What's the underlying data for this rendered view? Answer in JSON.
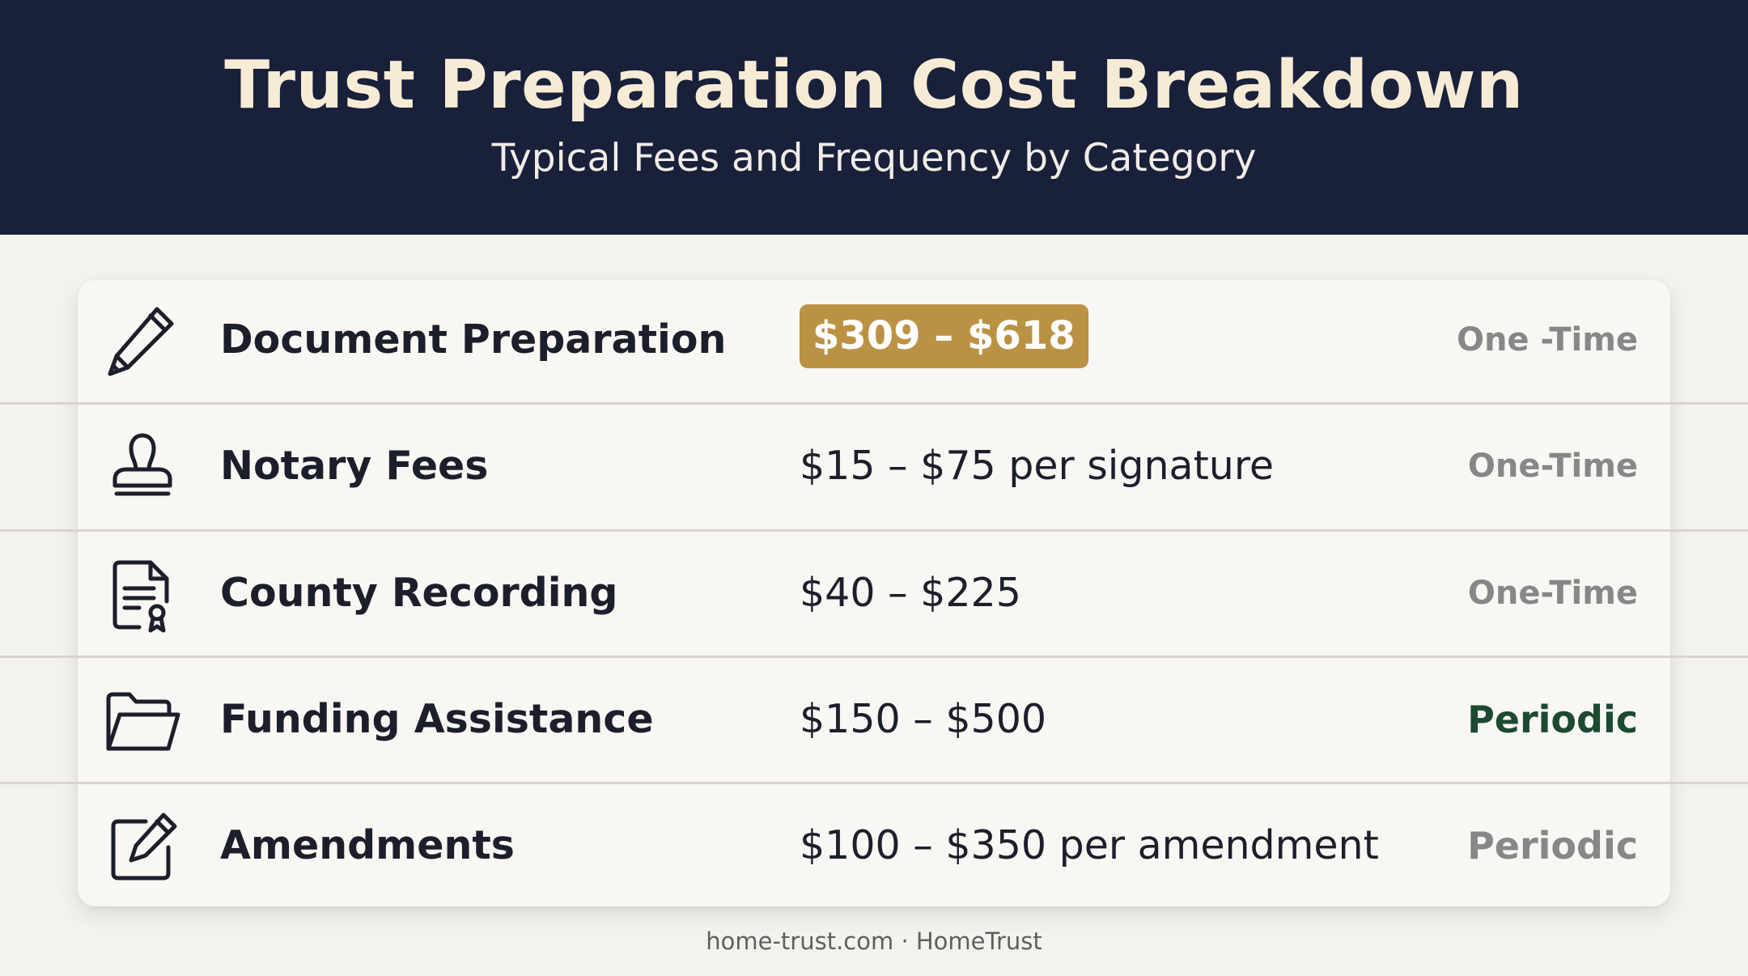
{
  "header": {
    "title": "Trust Preparation Cost Breakdown",
    "subtitle": "Typical Fees and Frequency by Category"
  },
  "rows": [
    {
      "icon": "pencil-icon",
      "label": "Document Preparation",
      "cost": "$309 – $618",
      "frequency": "One -Time",
      "highlighted": true
    },
    {
      "icon": "stamp-icon",
      "label": "Notary Fees",
      "cost": "$15 – $75 per signature",
      "frequency": "One-Time"
    },
    {
      "icon": "certificate-document-icon",
      "label": "County Recording",
      "cost": "$40 – $225",
      "frequency": "One-Time"
    },
    {
      "icon": "folder-icon",
      "label": "Funding Assistance",
      "cost": "$150 – $500",
      "frequency": "Periodic"
    },
    {
      "icon": "edit-icon",
      "label": "Amendments",
      "cost": "$100 – $350 per amendment",
      "frequency": "Periodic"
    }
  ],
  "footer": "home-trust.com · HomeTrust",
  "colors": {
    "header_bg": "#18203a",
    "title": "#f8ebd6",
    "badge_bg": "#bb9243",
    "periodic_green": "#1c4a30",
    "frequency_gray": "#878787"
  }
}
